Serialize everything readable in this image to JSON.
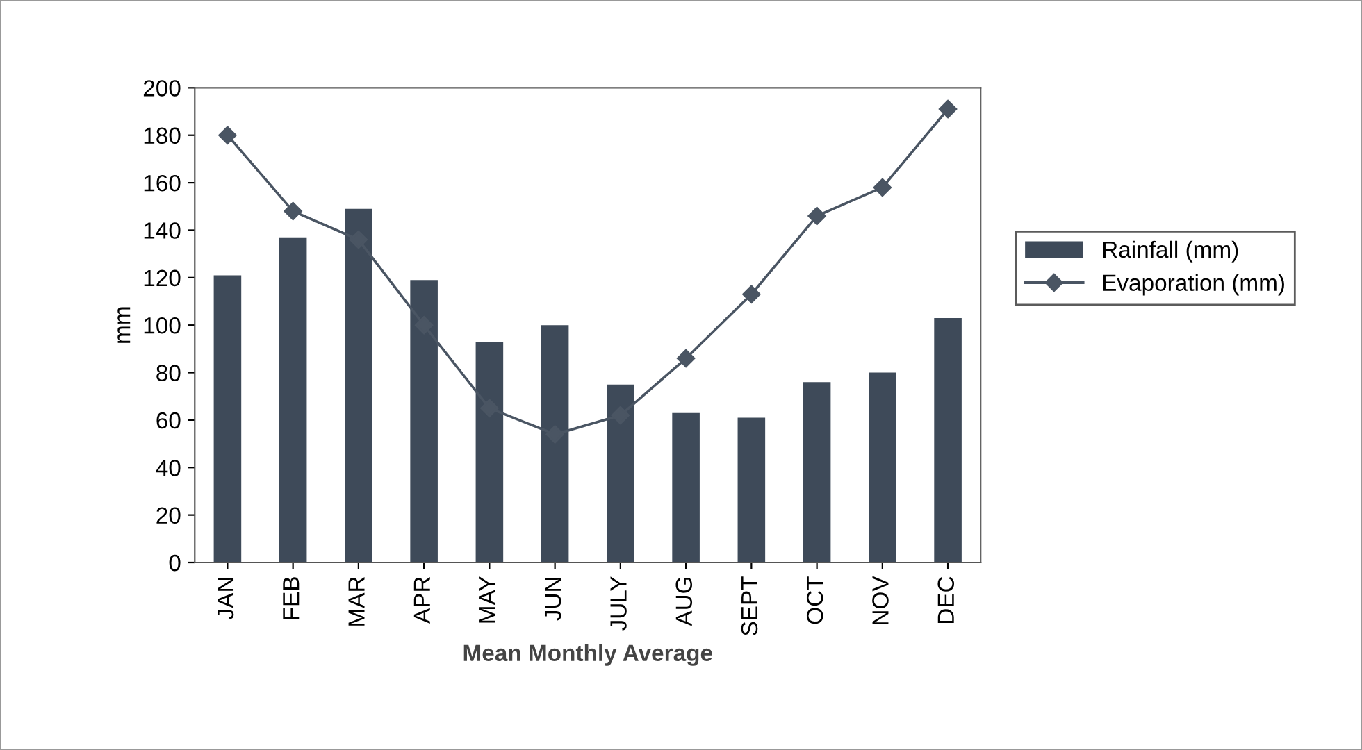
{
  "chart_data": {
    "type": "bar",
    "xlabel": "Mean Monthly Average",
    "ylabel": "mm",
    "categories": [
      "JAN",
      "FEB",
      "MAR",
      "APR",
      "MAY",
      "JUN",
      "JULY",
      "AUG",
      "SEPT",
      "OCT",
      "NOV",
      "DEC"
    ],
    "series": [
      {
        "name": "Rainfall (mm)",
        "color": "#3e4a59",
        "values": [
          121,
          137,
          149,
          119,
          93,
          100,
          75,
          63,
          61,
          76,
          80,
          103
        ]
      },
      {
        "name": "Evaporation (mm)",
        "type": "line",
        "color": "#4a5563",
        "marker": "diamond",
        "values": [
          180,
          148,
          136,
          100,
          65,
          54,
          62,
          86,
          113,
          146,
          158,
          191
        ]
      }
    ],
    "ylim": [
      0,
      200
    ],
    "yticks": [
      0,
      20,
      40,
      60,
      80,
      100,
      120,
      140,
      160,
      180,
      200
    ],
    "grid": false,
    "legend": "right"
  }
}
